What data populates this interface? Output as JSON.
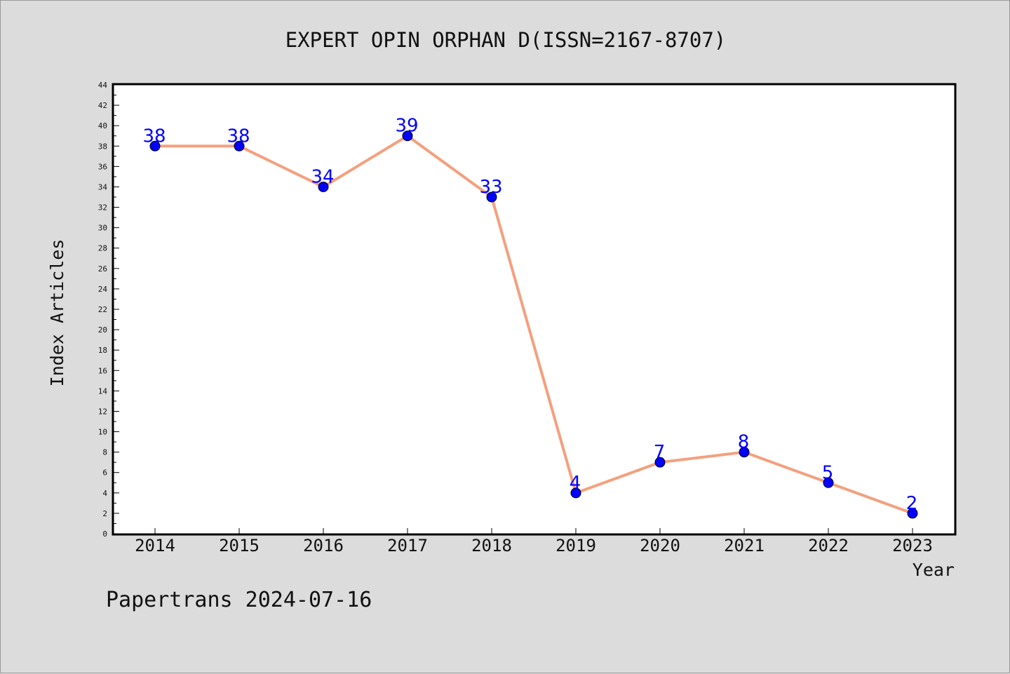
{
  "chart_data": {
    "type": "line",
    "title": "EXPERT OPIN ORPHAN D(ISSN=2167-8707)",
    "xlabel": "Year",
    "ylabel": "Index Articles",
    "categories": [
      "2014",
      "2015",
      "2016",
      "2017",
      "2018",
      "2019",
      "2020",
      "2021",
      "2022",
      "2023"
    ],
    "series": [
      {
        "values": [
          38,
          38,
          34,
          39,
          33,
          4,
          7,
          8,
          5,
          2
        ]
      }
    ],
    "ylim": [
      0,
      44
    ],
    "ytick_step": 2,
    "grid": false,
    "line_color": "#f4a07e",
    "marker_color": "#0000ff",
    "label_color": "#0000ff"
  },
  "footer": "Papertrans 2024-07-16"
}
